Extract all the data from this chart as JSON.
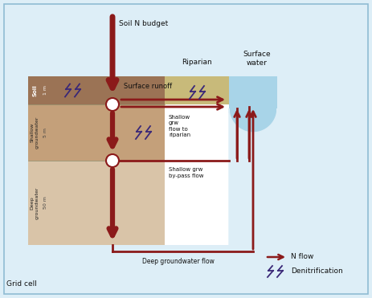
{
  "bg_color": "#ddeef7",
  "fig_bg": "#ddeef7",
  "soil_color": "#9b7355",
  "shallow_gw_color": "#c4a07a",
  "deep_gw_color": "#d9c4a8",
  "riparian_color": "#c8ba7a",
  "water_color": "#a8d4e8",
  "arrow_color": "#8b1a1a",
  "denit_color": "#3a2878",
  "border_color": "#90bcd4",
  "text_color": "#222222",
  "grid_cell_label": "Grid cell",
  "soil_n_budget_label": "Soil N budget",
  "surface_runoff_label": "Surface runoff",
  "riparian_label": "Riparian",
  "surface_water_label": "Surface\nwater",
  "shallow_grw_flow_label": "Shallow\ngrw\nflow to\nriparian",
  "shallow_bypass_label": "Shallow grw\nby-pass flow",
  "deep_gw_flow_label": "Deep groundwater flow",
  "soil_label": "Soil",
  "shallow_gw_label": "Shallow\ngroundwater",
  "deep_gw_label": "Deep\ngroundwater",
  "depth1_label": "1 m",
  "depth2_label": "5 m",
  "depth3_label": "50 m",
  "n_flow_label": "N flow",
  "denit_label": "Denitrification"
}
